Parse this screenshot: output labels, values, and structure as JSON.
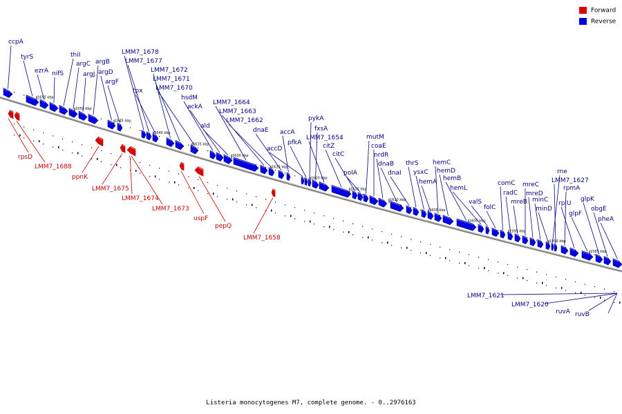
{
  "legend": [
    {
      "label": "Forward",
      "color": "#e00000"
    },
    {
      "label": "Reverse",
      "color": "#0000e0"
    }
  ],
  "caption": "Listeria monocytogenes M7, complete genome. - 0..2976163",
  "colors": {
    "forward": "#e00000",
    "reverse": "#0000e0",
    "backbone": "#808080",
    "label_forward": "#c00000",
    "label_reverse": "#000080"
  },
  "kbp_ticks": [
    "1655 kbp",
    "1650 kbp",
    "1645 kbp",
    "1640 kbp",
    "1635 kbp",
    "1630 kbp",
    "1625 kbp",
    "1620 kbp",
    "1615 kbp",
    "1610 kbp",
    "1605 kbp",
    "1600 kbp",
    "1595 kbp",
    "1590 kbp",
    "1585 kbp"
  ],
  "reverse_genes": [
    "ccpA",
    "tyrS",
    "ezrA",
    "nifS",
    "thiI",
    "argC",
    "argJ",
    "argB",
    "argD",
    "argF",
    "LMM7_1678",
    "LMM7_1677",
    "tpx",
    "LMM7_1672",
    "LMM7_1671",
    "LMM7_1670",
    "hsdM",
    "ackA",
    "ald",
    "LMM7_1664",
    "LMM7_1663",
    "LMM7_1662",
    "dnaE",
    "accA",
    "accD",
    "pfkA",
    "pykA",
    "fxsA",
    "LMM7_1654",
    "citZ",
    "citC",
    "polA",
    "mutM",
    "coaE",
    "nrdR",
    "dnaB",
    "dnaI",
    "thrS",
    "ysxC",
    "hemA",
    "hemC",
    "hemD",
    "hemB",
    "hemL",
    "valS",
    "folC",
    "comC",
    "radC",
    "mreB",
    "mreC",
    "mreD",
    "minC",
    "minD",
    "rne",
    "LMM7_1627",
    "rpmA",
    "rplU",
    "glpF",
    "glpK",
    "obgE",
    "pheA"
  ],
  "forward_genes": [
    "rpsD",
    "LMM7_1688",
    "ppnK",
    "LMM7_1675",
    "LMM7_1674",
    "LMM7_1673",
    "uspF",
    "pepQ",
    "LMM7_1658"
  ],
  "lower_reverse_genes": [
    "LMM7_1621",
    "LMM7_1620",
    "ruvA",
    "ruvB"
  ]
}
